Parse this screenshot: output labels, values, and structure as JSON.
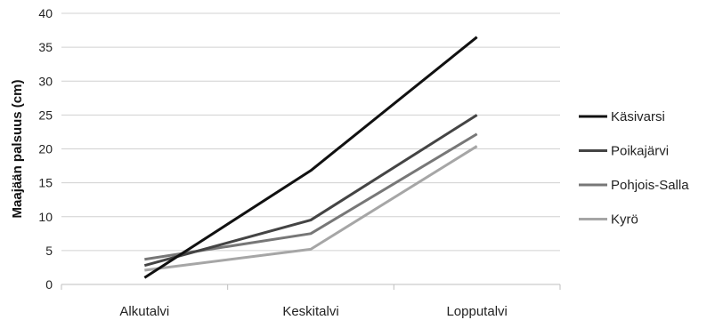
{
  "chart_data": {
    "type": "line",
    "title": "",
    "xlabel": "",
    "ylabel": "Maajään palsuus (cm)",
    "categories": [
      "Alkutalvi",
      "Keskitalvi",
      "Lopputalvi"
    ],
    "ylim": [
      0,
      40
    ],
    "yticks": [
      "0",
      "5",
      "10",
      "15",
      "20",
      "25",
      "30",
      "35",
      "40"
    ],
    "grid": true,
    "legend": "right",
    "series": [
      {
        "name": "Käsivarsi",
        "values": [
          1.0,
          16.8,
          36.5
        ],
        "color": "#111111"
      },
      {
        "name": "Poikajärvi",
        "values": [
          2.8,
          9.5,
          25.0
        ],
        "color": "#444444"
      },
      {
        "name": "Pohjois-Salla",
        "values": [
          3.7,
          7.5,
          22.2
        ],
        "color": "#777777"
      },
      {
        "name": "Kyrö",
        "values": [
          2.1,
          5.2,
          20.4
        ],
        "color": "#a6a6a6"
      }
    ]
  }
}
